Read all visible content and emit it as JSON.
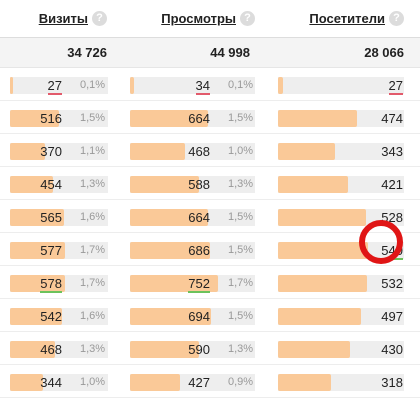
{
  "columns": [
    {
      "label": "Визиты",
      "total": "34 726",
      "help": "?"
    },
    {
      "label": "Просмотры",
      "total": "44 998",
      "help": "?"
    },
    {
      "label": "Посетители",
      "total": "28 066",
      "help": "?"
    }
  ],
  "rows": [
    {
      "visits": "27",
      "visits_pct": "0,1%",
      "views": "34",
      "views_pct": "0,1%",
      "visitors": "27"
    },
    {
      "visits": "516",
      "visits_pct": "1,5%",
      "views": "664",
      "views_pct": "1,5%",
      "visitors": "474"
    },
    {
      "visits": "370",
      "visits_pct": "1,1%",
      "views": "468",
      "views_pct": "1,0%",
      "visitors": "343"
    },
    {
      "visits": "454",
      "visits_pct": "1,3%",
      "views": "588",
      "views_pct": "1,3%",
      "visitors": "421"
    },
    {
      "visits": "565",
      "visits_pct": "1,6%",
      "views": "664",
      "views_pct": "1,5%",
      "visitors": "528"
    },
    {
      "visits": "577",
      "visits_pct": "1,7%",
      "views": "686",
      "views_pct": "1,5%",
      "visitors": "540"
    },
    {
      "visits": "578",
      "visits_pct": "1,7%",
      "views": "752",
      "views_pct": "1,7%",
      "visitors": "532"
    },
    {
      "visits": "542",
      "visits_pct": "1,6%",
      "views": "694",
      "views_pct": "1,5%",
      "visitors": "497"
    },
    {
      "visits": "468",
      "visits_pct": "1,3%",
      "views": "590",
      "views_pct": "1,3%",
      "visitors": "430"
    },
    {
      "visits": "344",
      "visits_pct": "1,0%",
      "views": "427",
      "views_pct": "0,9%",
      "visitors": "318"
    }
  ],
  "colors": {
    "bar_fill": "#fac998",
    "bar_track": "#eeeeee",
    "highlight_ring": "#e01515",
    "mark_red": "#e25a6b",
    "mark_green": "#6cc25b"
  }
}
